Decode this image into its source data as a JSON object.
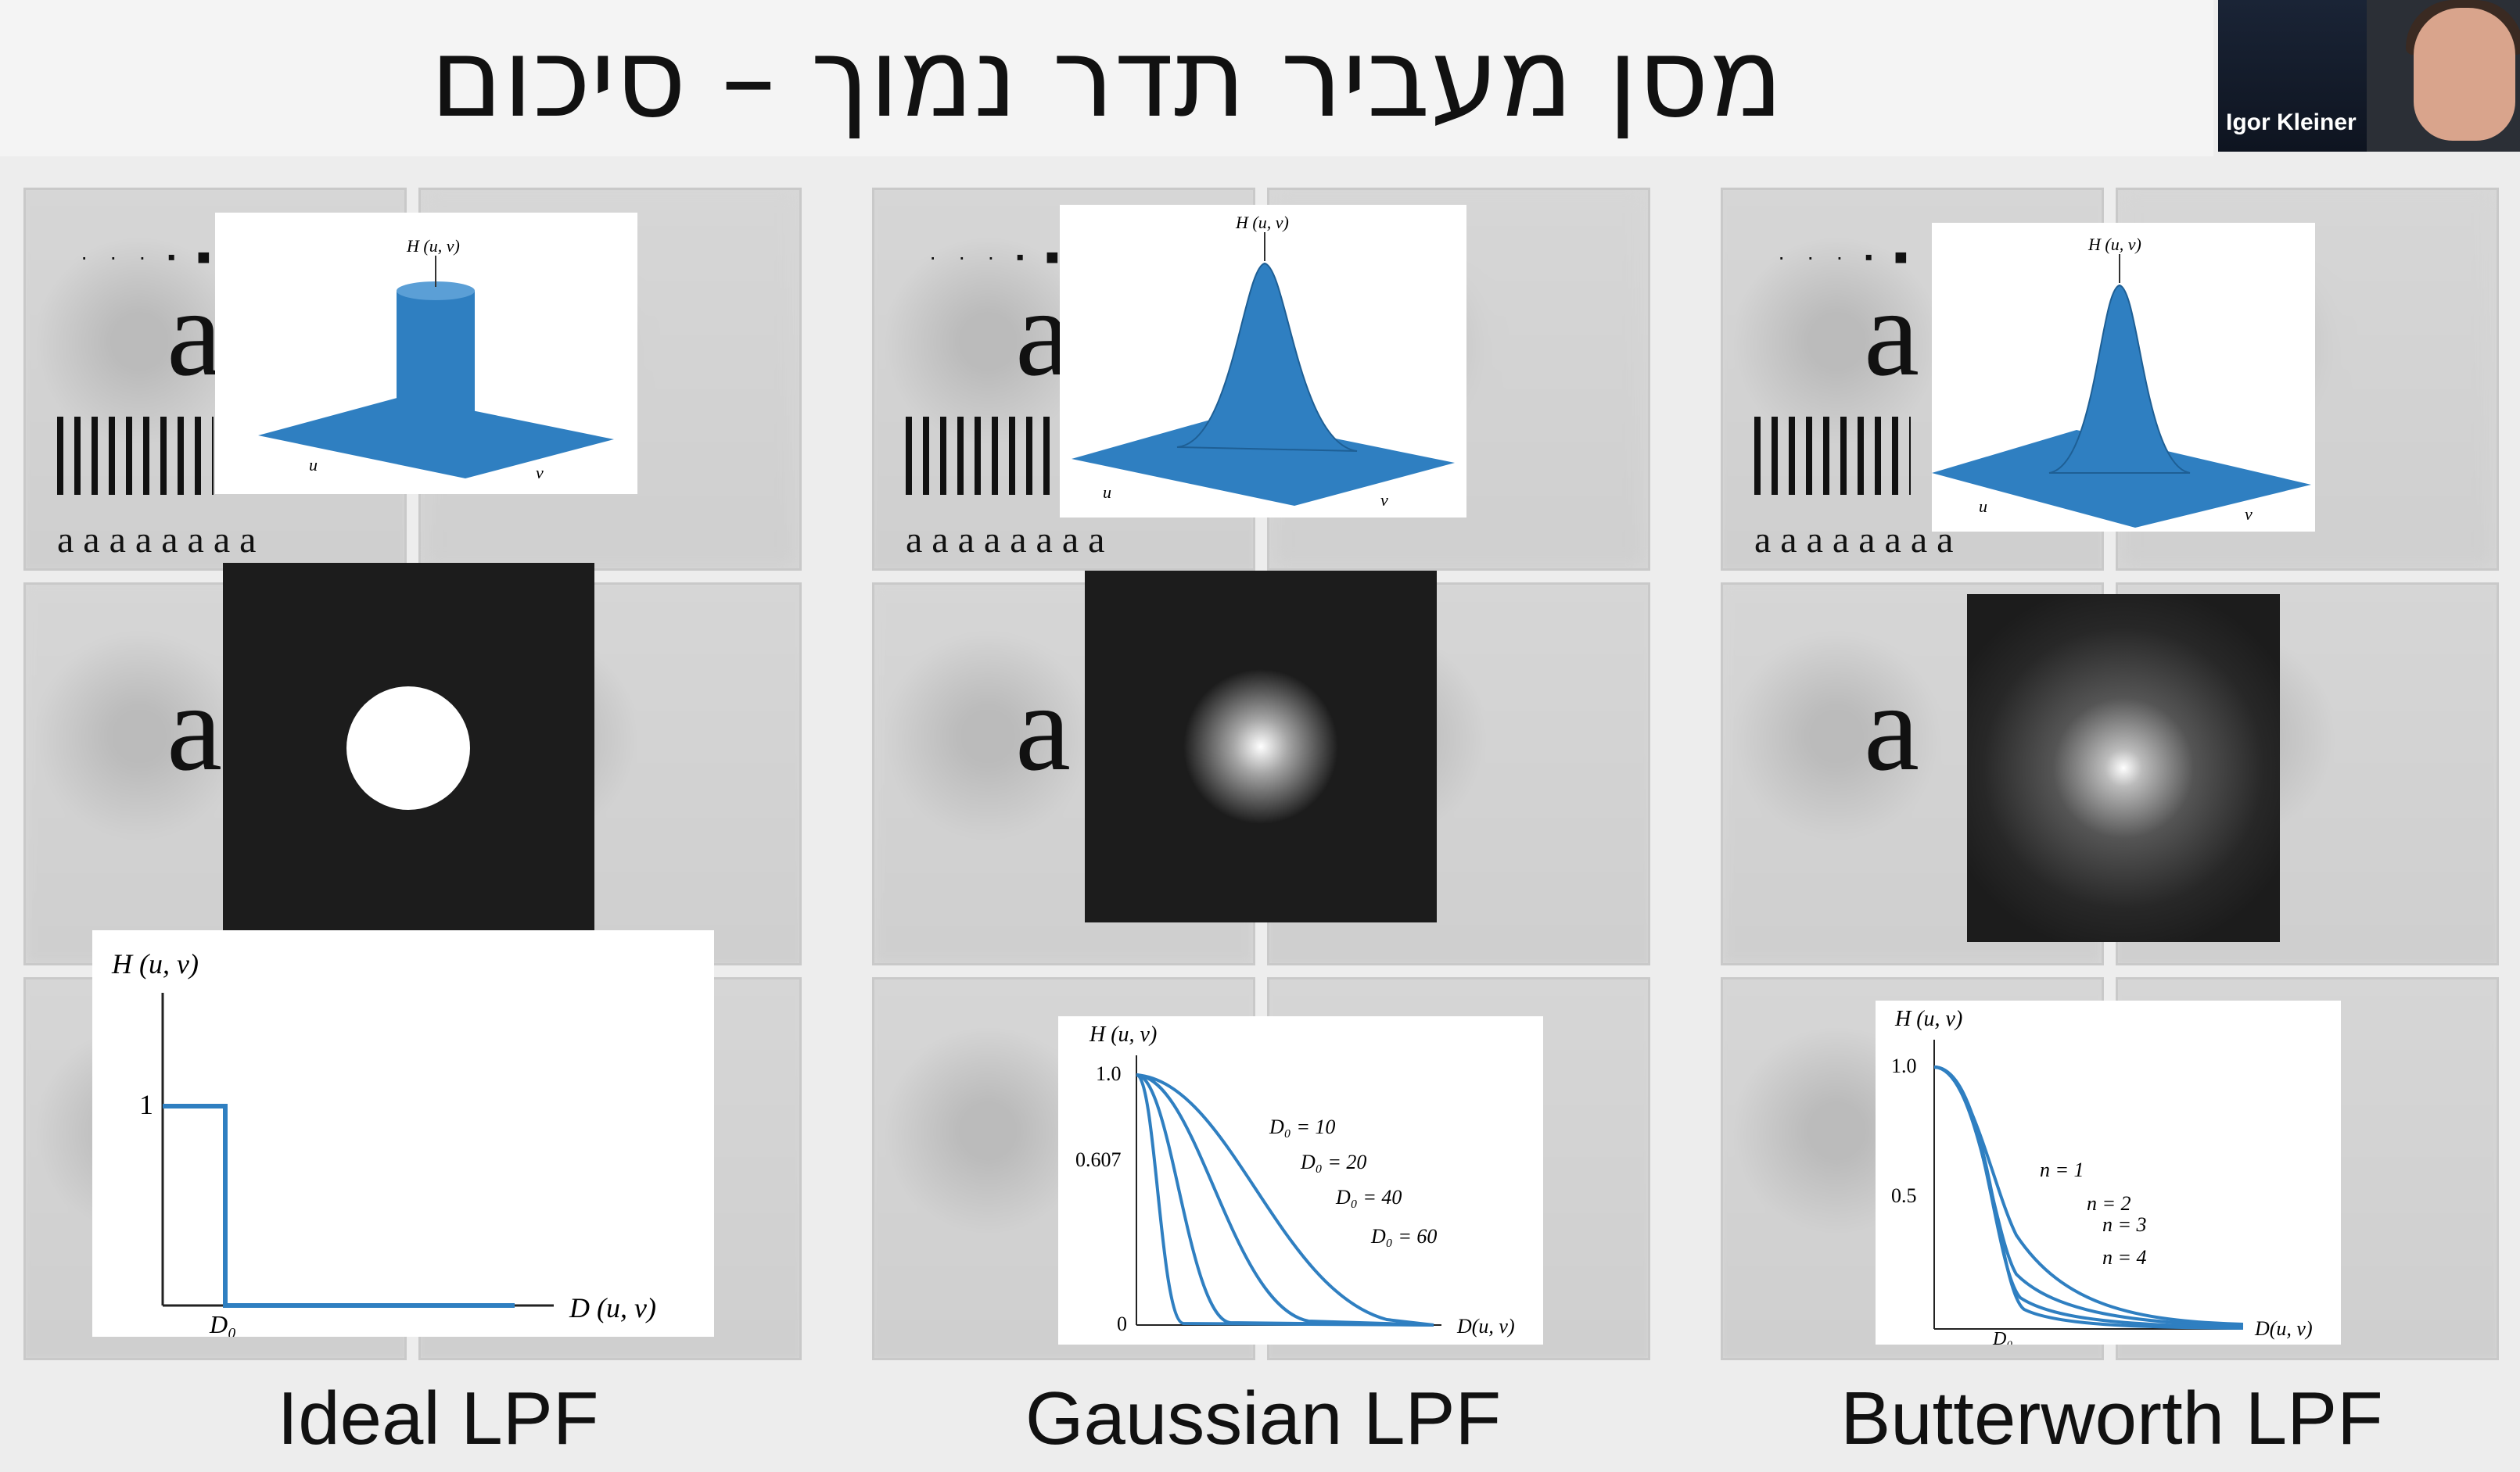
{
  "slide": {
    "title": "מסן מעביר תדר נמוך – סיכום"
  },
  "webcam": {
    "name": "Igor Kleiner"
  },
  "panels": [
    {
      "caption": "Ideal LPF",
      "plot3d_label": "H (u, v)",
      "axis_u": "u",
      "axis_v": "v",
      "curve": {
        "ylabel": "H (u, v)",
        "xlabel": "D (u, v)",
        "y_tick": "1",
        "x_tick": "D₀"
      }
    },
    {
      "caption": "Gaussian LPF",
      "plot3d_label": "H (u, v)",
      "axis_u": "u",
      "axis_v": "v",
      "curve": {
        "ylabel": "H (u, v)",
        "xlabel": "D(u, v)",
        "y_ticks": [
          "1.0",
          "0.607",
          "0"
        ],
        "legend": [
          "D₀ = 10",
          "D₀ = 20",
          "D₀ = 40",
          "D₀ = 60"
        ]
      }
    },
    {
      "caption": "Butterworth LPF",
      "plot3d_label": "H (u, v)",
      "axis_u": "u",
      "axis_v": "v",
      "curve": {
        "ylabel": "H (u, v)",
        "xlabel": "D(u, v)",
        "y_ticks": [
          "1.0",
          "0.5"
        ],
        "x_tick": "D₀",
        "legend": [
          "n = 1",
          "n = 2",
          "n = 3",
          "n = 4"
        ]
      }
    }
  ],
  "test_pattern": {
    "letter": "a",
    "row": "a a a a a a a a"
  },
  "colors": {
    "plot_blue": "#2f7fc1",
    "filter_bg": "#1c1c1c"
  }
}
